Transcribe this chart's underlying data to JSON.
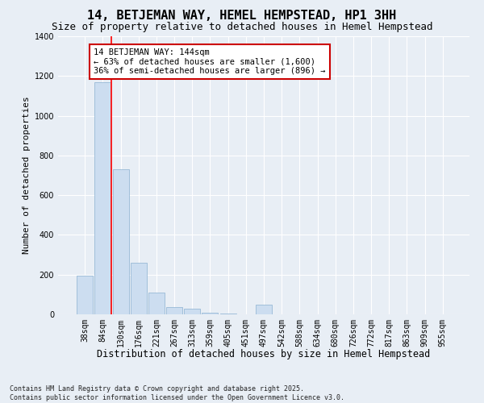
{
  "title": "14, BETJEMAN WAY, HEMEL HEMPSTEAD, HP1 3HH",
  "subtitle": "Size of property relative to detached houses in Hemel Hempstead",
  "xlabel": "Distribution of detached houses by size in Hemel Hempstead",
  "ylabel": "Number of detached properties",
  "categories": [
    "38sqm",
    "84sqm",
    "130sqm",
    "176sqm",
    "221sqm",
    "267sqm",
    "313sqm",
    "359sqm",
    "405sqm",
    "451sqm",
    "497sqm",
    "542sqm",
    "588sqm",
    "634sqm",
    "680sqm",
    "726sqm",
    "772sqm",
    "817sqm",
    "863sqm",
    "909sqm",
    "955sqm"
  ],
  "values": [
    195,
    1170,
    730,
    260,
    110,
    35,
    30,
    10,
    5,
    0,
    50,
    0,
    0,
    0,
    0,
    0,
    0,
    0,
    0,
    0,
    0
  ],
  "bar_color": "#ccddf0",
  "bar_edge_color": "#8ab0d0",
  "red_line_index": 1.5,
  "annotation_text": "14 BETJEMAN WAY: 144sqm\n← 63% of detached houses are smaller (1,600)\n36% of semi-detached houses are larger (896) →",
  "annotation_box_color": "#ffffff",
  "annotation_box_edge_color": "#cc0000",
  "ylim": [
    0,
    1400
  ],
  "yticks": [
    0,
    200,
    400,
    600,
    800,
    1000,
    1200,
    1400
  ],
  "bg_color": "#e8eef5",
  "grid_color": "#ffffff",
  "footer": "Contains HM Land Registry data © Crown copyright and database right 2025.\nContains public sector information licensed under the Open Government Licence v3.0.",
  "title_fontsize": 11,
  "subtitle_fontsize": 9,
  "xlabel_fontsize": 8.5,
  "ylabel_fontsize": 8,
  "tick_fontsize": 7,
  "annotation_fontsize": 7.5,
  "footer_fontsize": 6
}
